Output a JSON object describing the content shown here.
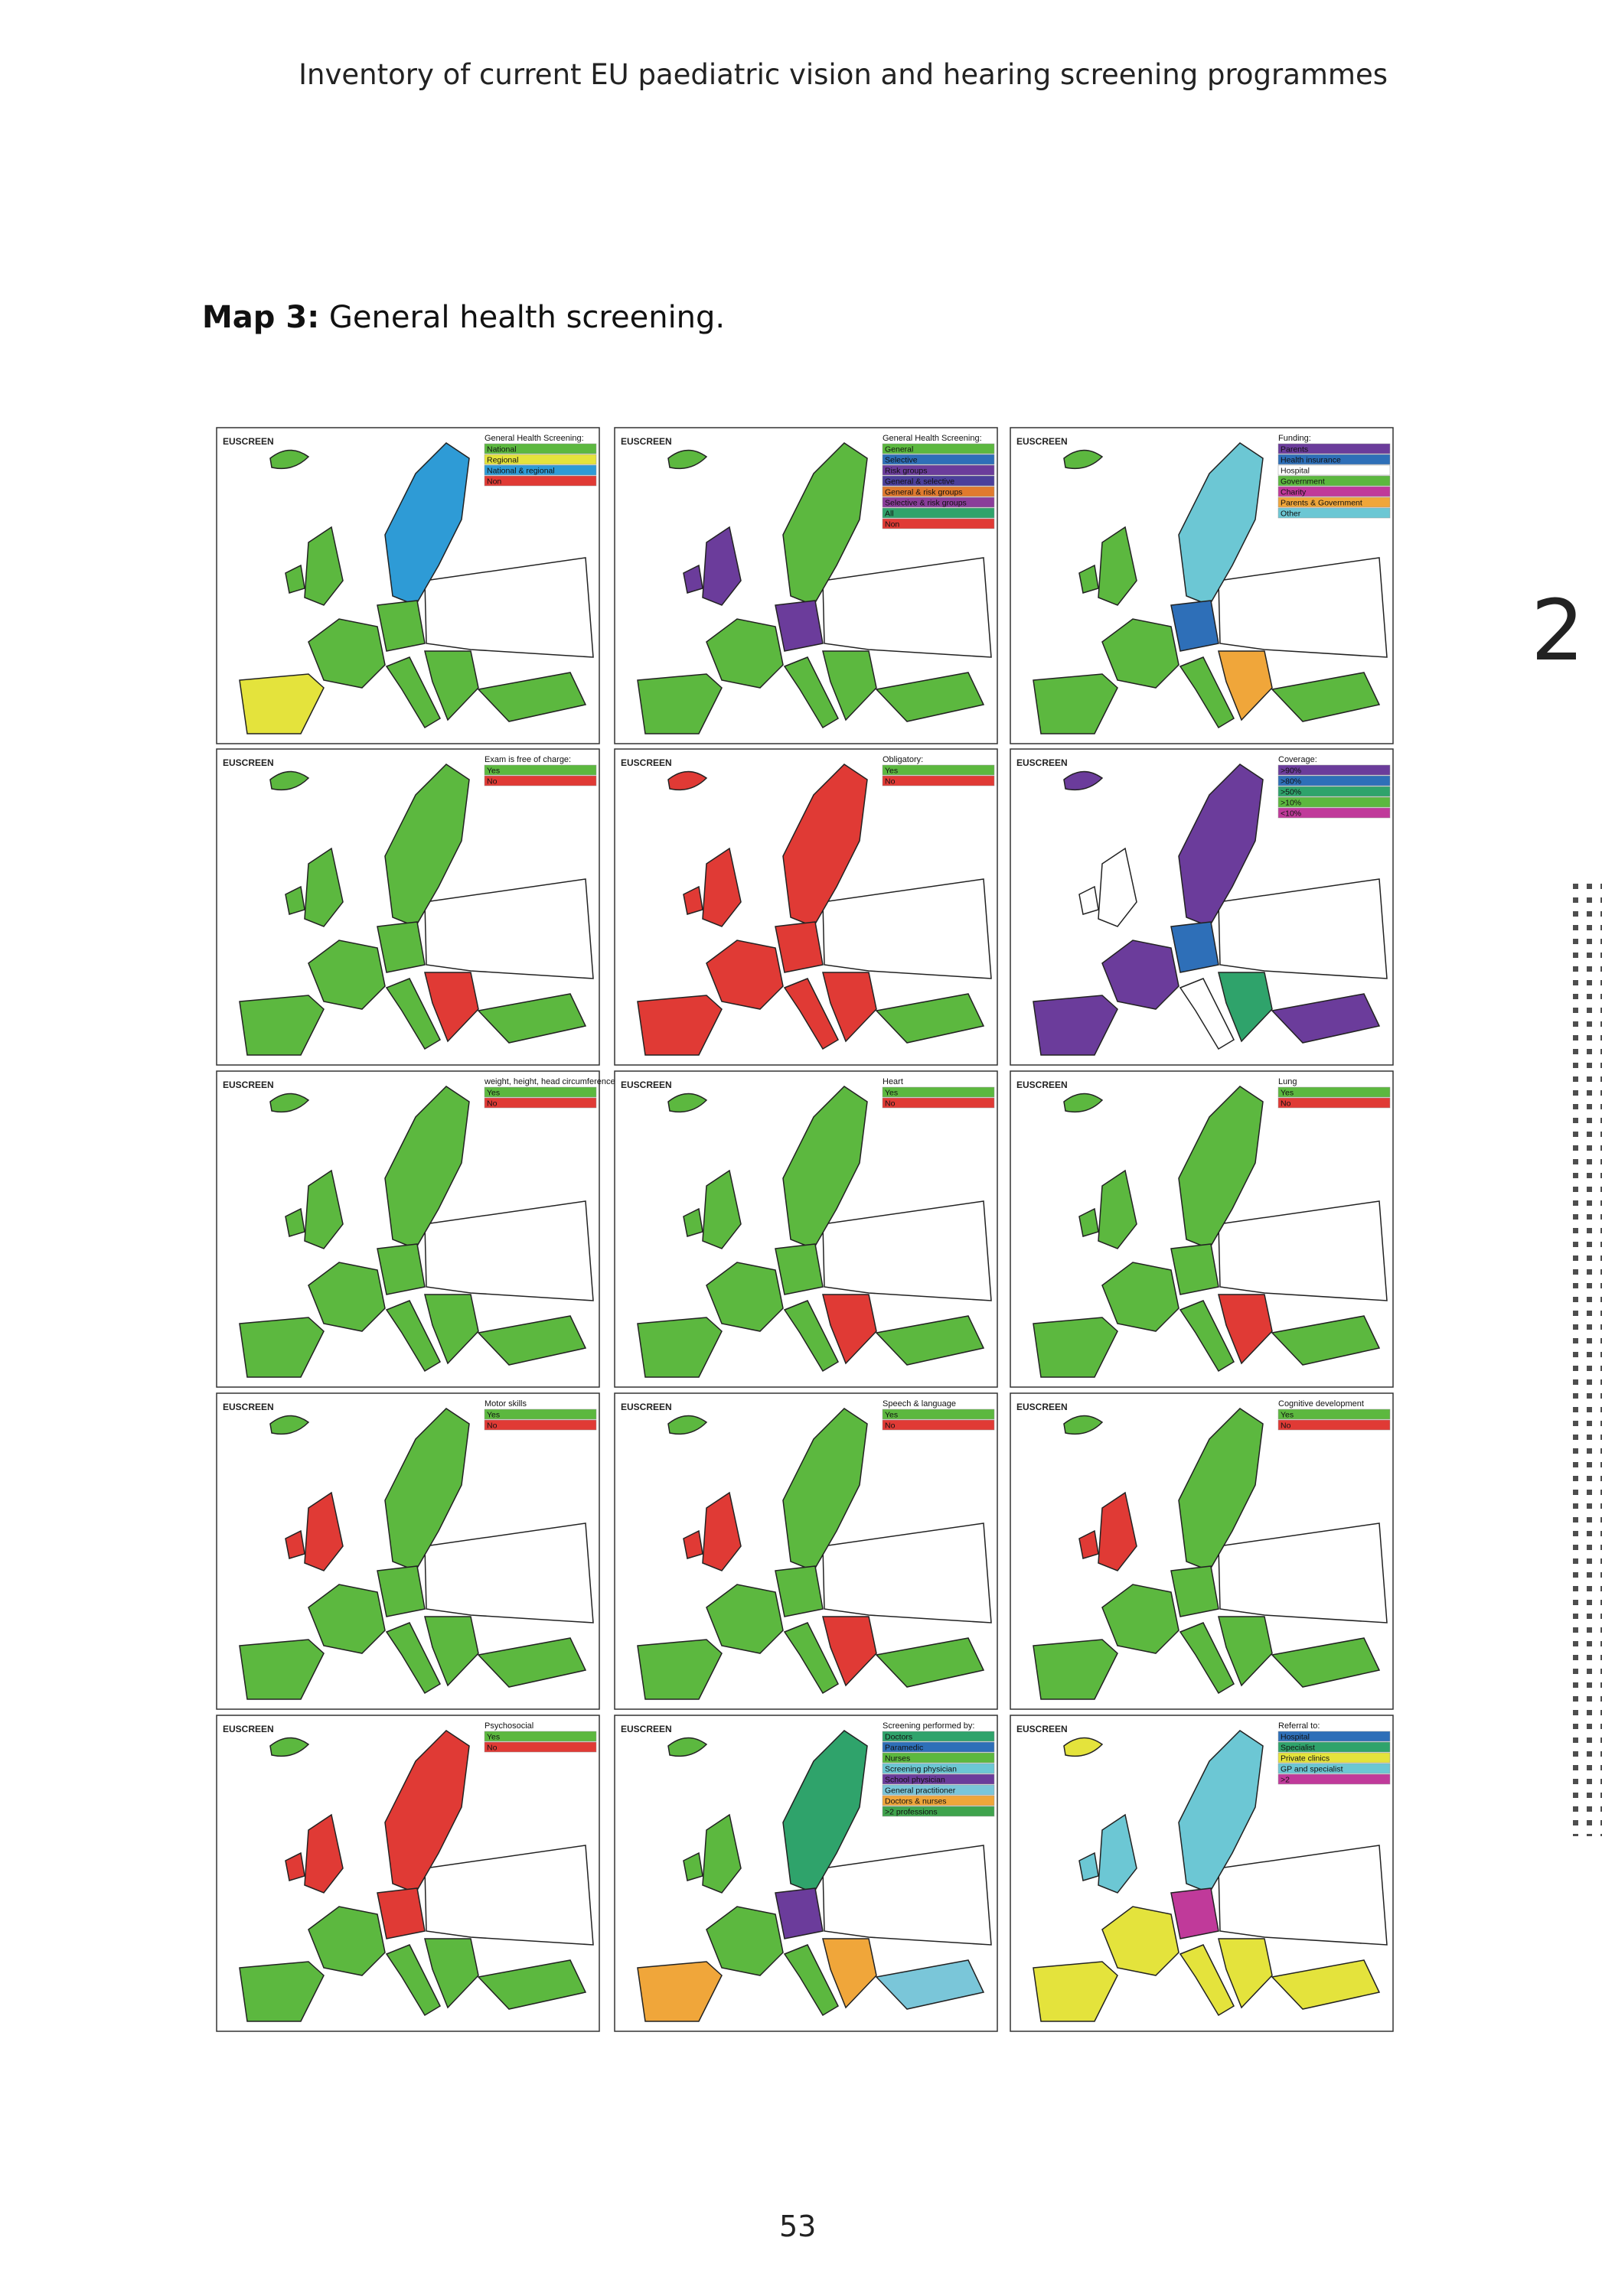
{
  "header": {
    "running_title": "Inventory of current EU paediatric vision and hearing screening programmes",
    "chapter_number": "2"
  },
  "figure": {
    "label": "Map 3:",
    "title": "General health screening."
  },
  "logo_text": "EUSCREEN",
  "maps": [
    {
      "legend_title": "General Health Screening:",
      "items": [
        {
          "label": "National",
          "color": "#5cb83f"
        },
        {
          "label": "Regional",
          "color": "#e4e33c"
        },
        {
          "label": "National & regional",
          "color": "#2e9bd6"
        },
        {
          "label": "Non",
          "color": "#e03a35"
        }
      ]
    },
    {
      "legend_title": "General Health Screening:",
      "items": [
        {
          "label": "General",
          "color": "#5cb83f"
        },
        {
          "label": "Selective",
          "color": "#2e6fb8"
        },
        {
          "label": "Risk groups",
          "color": "#6b3c9b"
        },
        {
          "label": "General & selective",
          "color": "#4b3f9a"
        },
        {
          "label": "General & risk groups",
          "color": "#e07a2e"
        },
        {
          "label": "Selective & risk groups",
          "color": "#8a3d9a"
        },
        {
          "label": "All",
          "color": "#2fa36b"
        },
        {
          "label": "Non",
          "color": "#e03a35"
        }
      ]
    },
    {
      "legend_title": "Funding:",
      "items": [
        {
          "label": "Parents",
          "color": "#6b3c9b"
        },
        {
          "label": "Health insurance",
          "color": "#2e6fb8"
        },
        {
          "label": "Hospital",
          "color": "#ffffff"
        },
        {
          "label": "Government",
          "color": "#5cb83f"
        },
        {
          "label": "Charity",
          "color": "#c03a9a"
        },
        {
          "label": "Parents & Government",
          "color": "#f0a63a"
        },
        {
          "label": "Other",
          "color": "#6cc7d4"
        }
      ]
    },
    {
      "legend_title": "Exam is free of charge:",
      "items": [
        {
          "label": "Yes",
          "color": "#5cb83f"
        },
        {
          "label": "No",
          "color": "#e03a35"
        }
      ]
    },
    {
      "legend_title": "Obligatory:",
      "items": [
        {
          "label": "Yes",
          "color": "#5cb83f"
        },
        {
          "label": "No",
          "color": "#e03a35"
        }
      ]
    },
    {
      "legend_title": "Coverage:",
      "items": [
        {
          "label": ">90%",
          "color": "#6b3c9b"
        },
        {
          "label": ">80%",
          "color": "#2e6fb8"
        },
        {
          "label": ">50%",
          "color": "#2fa36b"
        },
        {
          "label": ">10%",
          "color": "#5cb83f"
        },
        {
          "label": "<10%",
          "color": "#c03a9a"
        }
      ]
    },
    {
      "legend_title": "weight, height, head circumference",
      "items": [
        {
          "label": "Yes",
          "color": "#5cb83f"
        },
        {
          "label": "No",
          "color": "#e03a35"
        }
      ]
    },
    {
      "legend_title": "Heart",
      "items": [
        {
          "label": "Yes",
          "color": "#5cb83f"
        },
        {
          "label": "No",
          "color": "#e03a35"
        }
      ]
    },
    {
      "legend_title": "Lung",
      "items": [
        {
          "label": "Yes",
          "color": "#5cb83f"
        },
        {
          "label": "No",
          "color": "#e03a35"
        }
      ]
    },
    {
      "legend_title": "Motor skills",
      "items": [
        {
          "label": "Yes",
          "color": "#5cb83f"
        },
        {
          "label": "No",
          "color": "#e03a35"
        }
      ]
    },
    {
      "legend_title": "Speech & language",
      "items": [
        {
          "label": "Yes",
          "color": "#5cb83f"
        },
        {
          "label": "No",
          "color": "#e03a35"
        }
      ]
    },
    {
      "legend_title": "Cognitive development",
      "items": [
        {
          "label": "Yes",
          "color": "#5cb83f"
        },
        {
          "label": "No",
          "color": "#e03a35"
        }
      ]
    },
    {
      "legend_title": "Psychosocial",
      "items": [
        {
          "label": "Yes",
          "color": "#5cb83f"
        },
        {
          "label": "No",
          "color": "#e03a35"
        }
      ]
    },
    {
      "legend_title": "Screening performed by:",
      "items": [
        {
          "label": "Doctors",
          "color": "#2fa36b"
        },
        {
          "label": "Paramedic",
          "color": "#2e6fb8"
        },
        {
          "label": "Nurses",
          "color": "#5cb83f"
        },
        {
          "label": "Screening physician",
          "color": "#6cc7d4"
        },
        {
          "label": "School physician",
          "color": "#6b3c9b"
        },
        {
          "label": "General practitioner",
          "color": "#7ac6d9"
        },
        {
          "label": "Doctors & nurses",
          "color": "#f0a63a"
        },
        {
          "label": ">2 professions",
          "color": "#3fa34d"
        }
      ]
    },
    {
      "legend_title": "Referral to:",
      "items": [
        {
          "label": "Hospital",
          "color": "#2e6fb8"
        },
        {
          "label": "Specialist",
          "color": "#2fa36b"
        },
        {
          "label": "Private clinics",
          "color": "#e4e33c"
        },
        {
          "label": "GP and specialist",
          "color": "#6cc7d4"
        },
        {
          "label": ">2",
          "color": "#c03a9a"
        }
      ]
    }
  ],
  "page_number": "53"
}
